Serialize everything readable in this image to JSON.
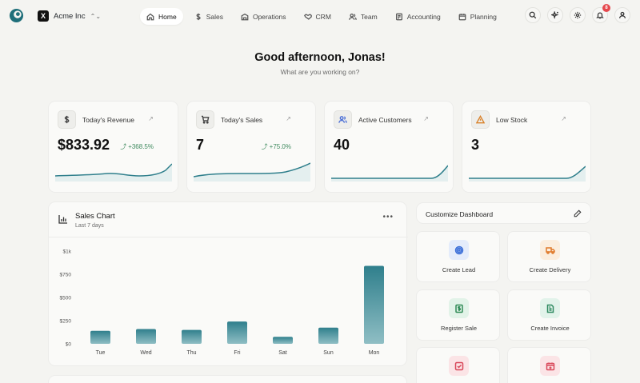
{
  "org": {
    "initial": "X",
    "name": "Acme Inc"
  },
  "nav": [
    {
      "label": "Home",
      "icon": "home-icon",
      "active": true
    },
    {
      "label": "Sales",
      "icon": "dollar-icon"
    },
    {
      "label": "Operations",
      "icon": "building-icon"
    },
    {
      "label": "CRM",
      "icon": "handshake-icon"
    },
    {
      "label": "Team",
      "icon": "users-icon"
    },
    {
      "label": "Accounting",
      "icon": "ledger-icon"
    },
    {
      "label": "Planning",
      "icon": "calendar-icon"
    }
  ],
  "notifications": {
    "count": "8"
  },
  "greeting": {
    "title": "Good afternoon, Jonas!",
    "subtitle": "What are you working on?"
  },
  "stats": [
    {
      "label": "Today's Revenue",
      "value": "$833.92",
      "change": "+368.5%",
      "icon": "dollar-icon"
    },
    {
      "label": "Today's Sales",
      "value": "7",
      "change": "+75.0%",
      "icon": "cart-icon"
    },
    {
      "label": "Active Customers",
      "value": "40",
      "change": "",
      "icon": "users-icon"
    },
    {
      "label": "Low Stock",
      "value": "3",
      "change": "",
      "icon": "warning-icon"
    }
  ],
  "sales_chart": {
    "title": "Sales Chart",
    "subtitle": "Last 7 days"
  },
  "chart_data": {
    "type": "bar",
    "title": "Sales Chart",
    "subtitle": "Last 7 days",
    "categories": [
      "Tue",
      "Wed",
      "Thu",
      "Fri",
      "Sat",
      "Sun",
      "Mon"
    ],
    "values": [
      140,
      160,
      150,
      240,
      75,
      175,
      840
    ],
    "ylim": [
      0,
      1000
    ],
    "yticks": [
      0,
      250,
      500,
      750,
      1000
    ],
    "ytick_labels": [
      "$0",
      "$250",
      "$500",
      "$750",
      "$1k"
    ],
    "bar_color_top": "#2f7f8c",
    "bar_color_bottom": "#8fbec4",
    "grid": false
  },
  "customize": {
    "label": "Customize Dashboard"
  },
  "actions": [
    {
      "label": "Create Lead",
      "icon": "target-icon",
      "bg": "#e4ecfb",
      "color": "#3b6fd8"
    },
    {
      "label": "Create Delivery",
      "icon": "truck-icon",
      "bg": "#fbeede",
      "color": "#e07a2a"
    },
    {
      "label": "Register Sale",
      "icon": "receipt-icon",
      "bg": "#e2f3e8",
      "color": "#2f8a55"
    },
    {
      "label": "Create Invoice",
      "icon": "document-icon",
      "bg": "#e2f3ea",
      "color": "#2f8a60"
    },
    {
      "label": "",
      "icon": "checkbox-icon",
      "bg": "#fbe4e6",
      "color": "#d9485a"
    },
    {
      "label": "",
      "icon": "calendar-plus-icon",
      "bg": "#fbe4e6",
      "color": "#d9485a"
    }
  ]
}
